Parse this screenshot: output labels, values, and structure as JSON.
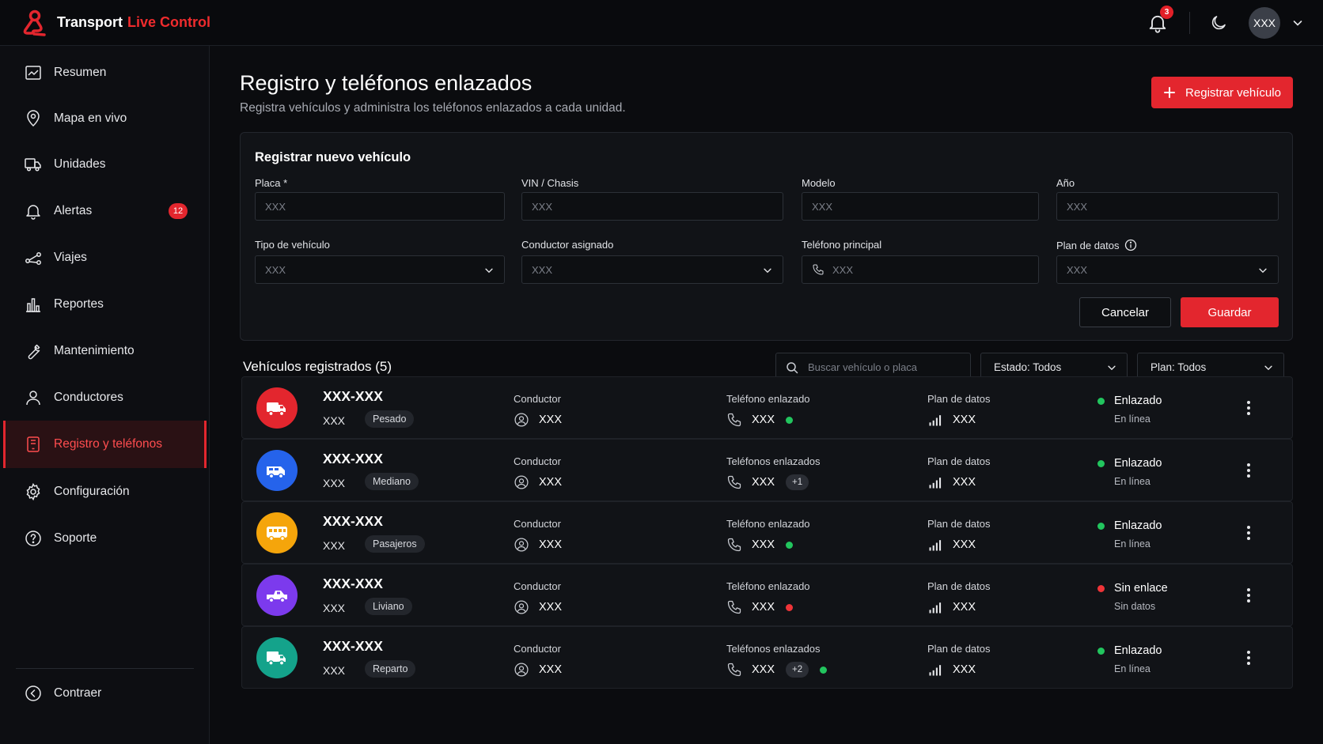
{
  "app": {
    "brand_main": "Transport",
    "brand_accent": "Live Control",
    "accent_color": "#e3262e"
  },
  "header": {
    "notification_count": "3",
    "avatar_text": "XXX"
  },
  "sidebar": {
    "items": [
      {
        "label": "Resumen",
        "icon": "chart-line-icon"
      },
      {
        "label": "Mapa en vivo",
        "icon": "map-pin-icon"
      },
      {
        "label": "Unidades",
        "icon": "truck-icon"
      },
      {
        "label": "Alertas",
        "icon": "bell-icon",
        "badge": "12"
      },
      {
        "label": "Viajes",
        "icon": "route-icon"
      },
      {
        "label": "Reportes",
        "icon": "bar-chart-icon"
      },
      {
        "label": "Mantenimiento",
        "icon": "wrench-icon"
      },
      {
        "label": "Conductores",
        "icon": "user-icon"
      },
      {
        "label": "Registro y teléfonos",
        "icon": "tablet-icon",
        "active": true
      },
      {
        "label": "Configuración",
        "icon": "gear-icon"
      },
      {
        "label": "Soporte",
        "icon": "help-icon"
      }
    ],
    "collapse_label": "Contraer"
  },
  "page": {
    "title": "Registro y teléfonos enlazados",
    "subtitle": "Registra vehículos y administra los teléfonos enlazados a cada unidad.",
    "register_button": "Registrar vehículo"
  },
  "form": {
    "title": "Registrar nuevo vehículo",
    "fields": {
      "placa": {
        "label": "Placa *",
        "placeholder": "XXX"
      },
      "vin": {
        "label": "VIN / Chasis",
        "placeholder": "XXX"
      },
      "modelo": {
        "label": "Modelo",
        "placeholder": "XXX"
      },
      "anio": {
        "label": "Año",
        "placeholder": "XXX"
      },
      "tipo": {
        "label": "Tipo de vehículo",
        "value": "XXX"
      },
      "conductor": {
        "label": "Conductor asignado",
        "value": "XXX"
      },
      "telefono": {
        "label": "Teléfono principal",
        "placeholder": "XXX"
      },
      "plan": {
        "label": "Plan de datos",
        "value": "XXX"
      }
    },
    "cancel_label": "Cancelar",
    "save_label": "Guardar"
  },
  "list": {
    "title": "Vehículos registrados (5)",
    "search_placeholder": "Buscar vehículo o placa",
    "filter_estado": "Estado: Todos",
    "filter_plan": "Plan: Todos",
    "col_conductor": "Conductor",
    "col_plan": "Plan de datos",
    "vehicles": [
      {
        "plate": "XXX-XXX",
        "model": "XXX",
        "tag": "Pesado",
        "avatar_color": "#e3262e",
        "icon": "truck-icon",
        "driver": "XXX",
        "phone_label": "Teléfono enlazado",
        "phone": "XXX",
        "phone_extra": "",
        "phone_dot": "green",
        "plan": "XXX",
        "status": "Enlazado",
        "status_color": "green",
        "status_sub": "En línea"
      },
      {
        "plate": "XXX-XXX",
        "model": "XXX",
        "tag": "Mediano",
        "avatar_color": "#2563eb",
        "icon": "van-icon",
        "driver": "XXX",
        "phone_label": "Teléfonos enlazados",
        "phone": "XXX",
        "phone_extra": "+1",
        "phone_dot": "",
        "plan": "XXX",
        "status": "Enlazado",
        "status_color": "green",
        "status_sub": "En línea"
      },
      {
        "plate": "XXX-XXX",
        "model": "XXX",
        "tag": "Pasajeros",
        "avatar_color": "#f5a50b",
        "icon": "bus-icon",
        "driver": "XXX",
        "phone_label": "Teléfono enlazado",
        "phone": "XXX",
        "phone_extra": "",
        "phone_dot": "green",
        "plan": "XXX",
        "status": "Enlazado",
        "status_color": "green",
        "status_sub": "En línea"
      },
      {
        "plate": "XXX-XXX",
        "model": "XXX",
        "tag": "Liviano",
        "avatar_color": "#7c3aed",
        "icon": "pickup-icon",
        "driver": "XXX",
        "phone_label": "Teléfono enlazado",
        "phone": "XXX",
        "phone_extra": "",
        "phone_dot": "red",
        "plan": "XXX",
        "status": "Sin enlace",
        "status_color": "red",
        "status_sub": "Sin datos"
      },
      {
        "plate": "XXX-XXX",
        "model": "XXX",
        "tag": "Reparto",
        "avatar_color": "#14a38b",
        "icon": "delivery-truck-icon",
        "driver": "XXX",
        "phone_label": "Teléfonos enlazados",
        "phone": "XXX",
        "phone_extra": "+2",
        "phone_dot": "green",
        "plan": "XXX",
        "status": "Enlazado",
        "status_color": "green",
        "status_sub": "En línea"
      }
    ]
  }
}
